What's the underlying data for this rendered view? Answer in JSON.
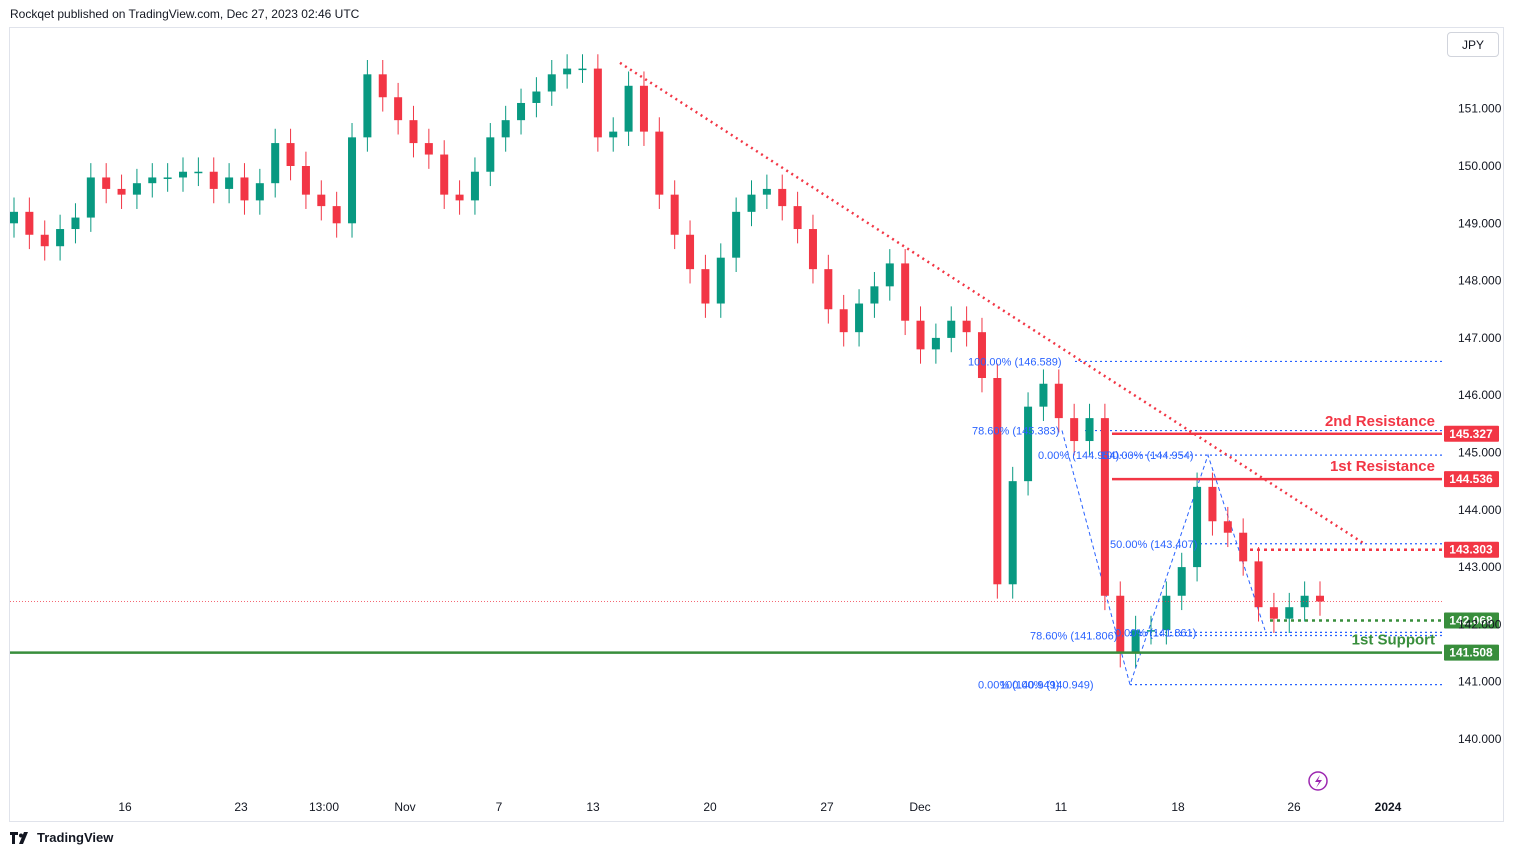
{
  "header": {
    "publisher_line": "Rockqet published on TradingView.com, Dec 27, 2023 02:46 UTC"
  },
  "toolbar": {
    "currency": "JPY"
  },
  "footer": {
    "brand": "TradingView",
    "logo_icon": "tradingview-logo-icon"
  },
  "colors": {
    "up": "#089981",
    "down": "#f23645",
    "resistance": "#f23645",
    "support": "#388e3c",
    "fib": "#2962ff",
    "text_fib": "#2962ff",
    "axis_text": "#131722"
  },
  "chart_data": {
    "type": "candlestick",
    "symbol_currency": "JPY",
    "y_axis": {
      "ticks": [
        140.0,
        141.0,
        142.0,
        143.0,
        144.0,
        145.0,
        146.0,
        147.0,
        148.0,
        149.0,
        150.0,
        151.0
      ],
      "tick_labels": [
        "140.000",
        "141.000",
        "142.000",
        "143.000",
        "144.000",
        "145.000",
        "146.000",
        "147.000",
        "148.000",
        "149.000",
        "150.000",
        "151.000"
      ]
    },
    "x_axis": {
      "tick_labels": [
        "16",
        "23",
        "13:00",
        "Nov",
        "7",
        "13",
        "20",
        "27",
        "Dec",
        "11",
        "18",
        "26",
        "2024"
      ],
      "bold": [
        "2024"
      ]
    },
    "price_lines": [
      {
        "label": "2nd Resistance",
        "value": 145.327,
        "price_label": "145.327",
        "kind": "resistance"
      },
      {
        "label": "1st Resistance",
        "value": 144.536,
        "price_label": "144.536",
        "kind": "resistance"
      },
      {
        "label": "",
        "value": 143.303,
        "price_label": "143.303",
        "kind": "resistance-dotted"
      },
      {
        "label": "",
        "value": 142.068,
        "price_label": "142.068",
        "kind": "support-dotted"
      },
      {
        "label": "1st Support",
        "value": 141.508,
        "price_label": "141.508",
        "kind": "support"
      }
    ],
    "fib_labels": [
      {
        "text": "100.00% (146.589)",
        "value": 146.589
      },
      {
        "text": "78.60% (145.383)",
        "value": 145.383
      },
      {
        "text": "0.00% (144.954)",
        "value": 144.954
      },
      {
        "text": "100.00% (144.954)",
        "value": 144.954
      },
      {
        "text": "50.00% (143.407)",
        "value": 143.407
      },
      {
        "text": "78.60% (141.806)",
        "value": 141.806
      },
      {
        "text": "0.00% (141.861)",
        "value": 141.861
      },
      {
        "text": "0.00% (140.949)",
        "value": 140.949
      },
      {
        "text": "100.00% (140.949)",
        "value": 140.949
      }
    ],
    "trendline": {
      "from_value": 151.8,
      "to_value": 143.4,
      "style": "dotted",
      "color": "#f23645"
    },
    "last_price": 142.4,
    "candles_approx": [
      149.2,
      148.8,
      148.6,
      148.9,
      149.1,
      149.8,
      149.6,
      149.5,
      149.7,
      149.8,
      149.8,
      149.9,
      149.9,
      149.6,
      149.8,
      149.4,
      149.7,
      150.4,
      150.0,
      149.5,
      149.3,
      149.0,
      150.5,
      151.6,
      151.2,
      150.8,
      150.4,
      150.2,
      149.5,
      149.4,
      149.9,
      150.5,
      150.8,
      151.1,
      151.3,
      151.6,
      151.7,
      151.7,
      150.5,
      150.6,
      151.4,
      150.6,
      149.5,
      148.8,
      148.2,
      147.6,
      148.4,
      149.2,
      149.5,
      149.6,
      149.3,
      148.9,
      148.2,
      147.5,
      147.1,
      147.6,
      147.9,
      148.3,
      147.3,
      146.8,
      147.0,
      147.3,
      147.1,
      146.3,
      142.7,
      144.5,
      145.8,
      146.2,
      145.6,
      145.2,
      145.6,
      142.5,
      141.5,
      141.9,
      141.9,
      142.5,
      143.0,
      144.4,
      143.8,
      143.6,
      143.1,
      142.3,
      142.1,
      142.3,
      142.5,
      142.4
    ]
  }
}
